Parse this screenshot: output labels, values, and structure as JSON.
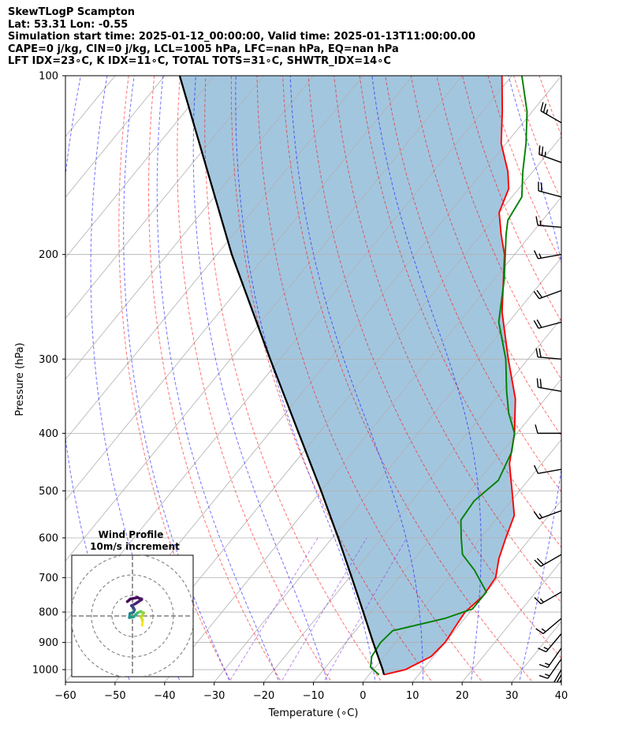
{
  "header": {
    "line1": "SkewTLogP Scampton",
    "line2": "Lat: 53.31   Lon: -0.55",
    "line3": "Simulation start time: 2025-01-12_00:00:00, Valid time: 2025-01-13T11:00:00.00",
    "line4": "CAPE=0 j/kg, CIN=0 j/kg, LCL=1005 hPa, LFC=nan hPa, EQ=nan hPa",
    "line5": "LFT IDX=23∘C, K IDX=11∘C, TOTAL TOTS=31∘C, SHWTR_IDX=14∘C"
  },
  "chart_data": {
    "type": "skewt-logp",
    "xlabel": "Temperature (∘C)",
    "ylabel": "Pressure (hPa)",
    "xlim": [
      -60,
      40
    ],
    "ylim": [
      1050,
      100
    ],
    "x_ticks": [
      "−60",
      "−50",
      "−40",
      "−30",
      "−20",
      "−10",
      "0",
      "10",
      "20",
      "30",
      "40"
    ],
    "y_ticks": [
      "100",
      "200",
      "300",
      "400",
      "500",
      "600",
      "700",
      "800",
      "900",
      "1000"
    ],
    "y_tick_values": [
      100,
      200,
      300,
      400,
      500,
      600,
      700,
      800,
      900,
      1000
    ],
    "grid": true,
    "series": [
      {
        "role": "temperature",
        "color": "#ff0000",
        "points": [
          [
            1020,
            3.0
          ],
          [
            1000,
            6.5
          ],
          [
            950,
            9.5
          ],
          [
            900,
            10.0
          ],
          [
            850,
            9.5
          ],
          [
            800,
            9.0
          ],
          [
            750,
            10.0
          ],
          [
            700,
            9.5
          ],
          [
            650,
            7.0
          ],
          [
            600,
            5.0
          ],
          [
            550,
            3.0
          ],
          [
            500,
            -1.5
          ],
          [
            450,
            -6.5
          ],
          [
            400,
            -10.5
          ],
          [
            350,
            -16.0
          ],
          [
            300,
            -24.0
          ],
          [
            250,
            -33.0
          ],
          [
            200,
            -42.0
          ],
          [
            185,
            -46.0
          ],
          [
            170,
            -50.0
          ],
          [
            155,
            -52.0
          ],
          [
            145,
            -55.0
          ],
          [
            130,
            -61.0
          ],
          [
            115,
            -66.0
          ],
          [
            100,
            -72.0
          ]
        ]
      },
      {
        "role": "dewpoint",
        "color": "#008000",
        "points": [
          [
            1020,
            2.0
          ],
          [
            990,
            -1.0
          ],
          [
            950,
            -2.5
          ],
          [
            900,
            -3.0
          ],
          [
            860,
            -2.5
          ],
          [
            820,
            6.0
          ],
          [
            790,
            10.0
          ],
          [
            740,
            10.0
          ],
          [
            680,
            4.0
          ],
          [
            640,
            -1.0
          ],
          [
            600,
            -4.0
          ],
          [
            560,
            -7.0
          ],
          [
            520,
            -7.5
          ],
          [
            480,
            -6.0
          ],
          [
            430,
            -8.0
          ],
          [
            400,
            -10.5
          ],
          [
            370,
            -15.0
          ],
          [
            340,
            -19.0
          ],
          [
            300,
            -24.5
          ],
          [
            260,
            -32.0
          ],
          [
            220,
            -38.0
          ],
          [
            185,
            -45.0
          ],
          [
            175,
            -47.0
          ],
          [
            160,
            -48.0
          ],
          [
            145,
            -52.0
          ],
          [
            130,
            -56.0
          ],
          [
            115,
            -61.0
          ],
          [
            100,
            -68.0
          ]
        ]
      },
      {
        "role": "parcel",
        "color": "#000000",
        "points": [
          [
            1020,
            3.0
          ],
          [
            1000,
            1.9
          ],
          [
            900,
            -4.5
          ],
          [
            800,
            -11.5
          ],
          [
            700,
            -19.5
          ],
          [
            600,
            -28.8
          ],
          [
            500,
            -40.0
          ],
          [
            400,
            -54.0
          ],
          [
            300,
            -72.0
          ],
          [
            200,
            -97.0
          ],
          [
            100,
            -137.0
          ]
        ]
      }
    ],
    "wind_barbs": {
      "color": "#000000",
      "levels": [
        {
          "p": 100,
          "dir": 320,
          "speed": 20
        },
        {
          "p": 120,
          "dir": 300,
          "speed": 25
        },
        {
          "p": 140,
          "dir": 290,
          "speed": 25
        },
        {
          "p": 160,
          "dir": 285,
          "speed": 20
        },
        {
          "p": 180,
          "dir": 275,
          "speed": 15
        },
        {
          "p": 200,
          "dir": 260,
          "speed": 15
        },
        {
          "p": 230,
          "dir": 250,
          "speed": 20
        },
        {
          "p": 260,
          "dir": 255,
          "speed": 20
        },
        {
          "p": 300,
          "dir": 275,
          "speed": 20
        },
        {
          "p": 340,
          "dir": 280,
          "speed": 20
        },
        {
          "p": 400,
          "dir": 270,
          "speed": 10
        },
        {
          "p": 460,
          "dir": 260,
          "speed": 10
        },
        {
          "p": 540,
          "dir": 250,
          "speed": 15
        },
        {
          "p": 640,
          "dir": 240,
          "speed": 20
        },
        {
          "p": 740,
          "dir": 240,
          "speed": 15
        },
        {
          "p": 820,
          "dir": 230,
          "speed": 15
        },
        {
          "p": 870,
          "dir": 220,
          "speed": 15
        },
        {
          "p": 920,
          "dir": 215,
          "speed": 15
        },
        {
          "p": 960,
          "dir": 215,
          "speed": 15
        },
        {
          "p": 1000,
          "dir": 210,
          "speed": 10
        },
        {
          "p": 1020,
          "dir": 210,
          "speed": 15
        },
        {
          "p": 1040,
          "dir": 210,
          "speed": 15
        }
      ]
    },
    "wind_profile": {
      "title": "Wind Profile",
      "subtitle": "10m/s increment",
      "ring_speeds": [
        10,
        20,
        30
      ],
      "points": [
        {
          "u": 4.8,
          "v": -4.5,
          "c": "#fde725"
        },
        {
          "u": 4.9,
          "v": -2.0,
          "c": "#d8e219"
        },
        {
          "u": 4.2,
          "v": -0.5,
          "c": "#b5de2b"
        },
        {
          "u": 5.5,
          "v": 1.5,
          "c": "#90d743"
        },
        {
          "u": 4.0,
          "v": 2.2,
          "c": "#6ece58"
        },
        {
          "u": 2.5,
          "v": 1.5,
          "c": "#4ac16d"
        },
        {
          "u": 1.5,
          "v": 0.5,
          "c": "#2db27d"
        },
        {
          "u": 0.5,
          "v": -0.5,
          "c": "#1fa187"
        },
        {
          "u": -1.5,
          "v": -0.8,
          "c": "#21918c"
        },
        {
          "u": -1.2,
          "v": 1.2,
          "c": "#26828e"
        },
        {
          "u": 0.5,
          "v": 1.8,
          "c": "#2e6f8e"
        },
        {
          "u": 1.0,
          "v": 3.0,
          "c": "#375a8c"
        },
        {
          "u": 0.5,
          "v": 4.0,
          "c": "#3f4788"
        },
        {
          "u": -0.5,
          "v": 5.0,
          "c": "#463480"
        },
        {
          "u": 1.5,
          "v": 6.0,
          "c": "#482173"
        },
        {
          "u": 4.5,
          "v": 8.0,
          "c": "#471365"
        },
        {
          "u": 2.5,
          "v": 9.0,
          "c": "#450a5a"
        },
        {
          "u": -1.0,
          "v": 8.3,
          "c": "#440154"
        },
        {
          "u": -2.5,
          "v": 7.0,
          "c": "#440154"
        }
      ]
    }
  }
}
